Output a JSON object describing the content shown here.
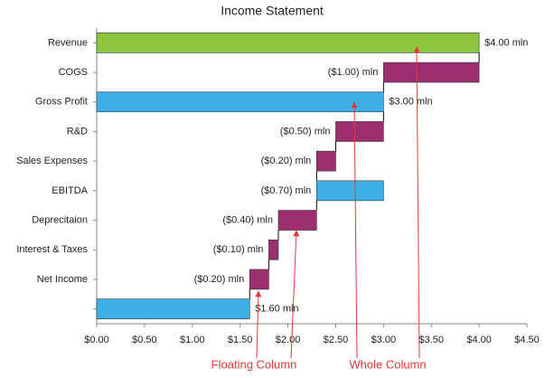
{
  "chart_data": {
    "type": "waterfall",
    "title": "Income Statement",
    "categories": [
      "Revenue",
      "COGS",
      "Gross Profit",
      "R&D",
      "Sales Expenses",
      "EBITDA",
      "Deprecitaion",
      "Interest & Taxes",
      "Net Income",
      null
    ],
    "values": [
      4,
      -1,
      3,
      -0.5,
      -0.2,
      -0.7,
      -0.4,
      -0.1,
      -0.2,
      1.6
    ],
    "value_labels": [
      "$4.00 mln",
      "($1.00) mln",
      "$3.00 mln",
      "($0.50) mln",
      "($0.20) mln",
      "($0.70) mln",
      "($0.40) mln",
      "($0.10) mln",
      "($0.20) mln",
      "$1.60 mln"
    ],
    "measure": [
      "total",
      "relative",
      "total",
      "relative",
      "relative",
      "subtotal",
      "relative",
      "relative",
      "relative",
      "total"
    ],
    "colors": [
      "#8cc63f",
      "#9c2f6f",
      "#3daee6",
      "#9c2f6f",
      "#9c2f6f",
      "#3daee6",
      "#9c2f6f",
      "#9c2f6f",
      "#9c2f6f",
      "#3daee6"
    ],
    "xlim": [
      0,
      4.5
    ],
    "xticks": [
      {
        "value": 0,
        "label": "$0.00"
      },
      {
        "value": 0.5,
        "label": "$0.50"
      },
      {
        "value": 1,
        "label": "$1.00"
      },
      {
        "value": 1.5,
        "label": "$1.50"
      },
      {
        "value": 2,
        "label": "$2.00"
      },
      {
        "value": 2.5,
        "label": "$2.50"
      },
      {
        "value": 3,
        "label": "$3.00"
      },
      {
        "value": 3.5,
        "label": "$3.50"
      },
      {
        "value": 4,
        "label": "$4.00"
      },
      {
        "value": 4.5,
        "label": "$4.50"
      }
    ],
    "annotations": [
      "Floating  Column",
      "Whole Column"
    ]
  }
}
